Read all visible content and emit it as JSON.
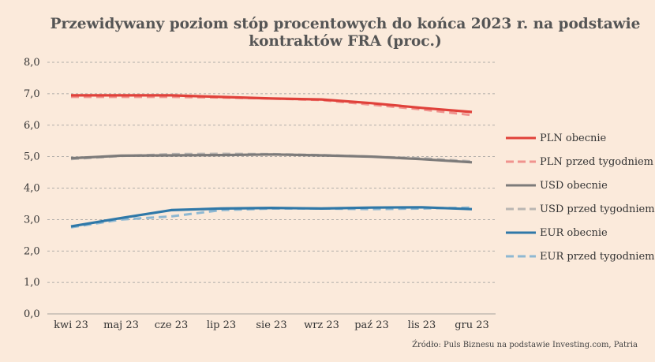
{
  "chart_data": {
    "type": "line",
    "title_lines": [
      "Przewidywany poziom stóp procentowych do końca 2023 r. na podstawie",
      "kontraktów FRA (proc.)"
    ],
    "categories": [
      "kwi 23",
      "maj 23",
      "cze 23",
      "lip 23",
      "sie 23",
      "wrz 23",
      "paź 23",
      "lis 23",
      "gru 23"
    ],
    "y_ticks": [
      "0,0",
      "1,0",
      "2,0",
      "3,0",
      "4,0",
      "5,0",
      "6,0",
      "7,0",
      "8,0"
    ],
    "ylim": [
      0,
      8
    ],
    "grid": true,
    "legend_position": "right",
    "series": [
      {
        "name": "PLN obecnie",
        "color": "#e0413a",
        "style": "solid",
        "x": [
          0,
          1,
          2,
          3,
          4,
          5,
          6,
          7,
          8
        ],
        "values": [
          6.95,
          6.95,
          6.95,
          6.9,
          6.85,
          6.82,
          6.7,
          6.55,
          6.42
        ]
      },
      {
        "name": "PLN przed tygodniem",
        "color": "#f0938e",
        "style": "dashed",
        "x": [
          0,
          1,
          2,
          3,
          4,
          5,
          6,
          7,
          8
        ],
        "values": [
          6.9,
          6.9,
          6.9,
          6.88,
          6.85,
          6.8,
          6.65,
          6.5,
          6.32
        ]
      },
      {
        "name": "USD obecnie",
        "color": "#7d7b7a",
        "style": "solid",
        "x": [
          0,
          1,
          2,
          3,
          4,
          5,
          6,
          7,
          8
        ],
        "values": [
          4.95,
          5.03,
          5.04,
          5.05,
          5.07,
          5.04,
          5.0,
          4.92,
          4.82
        ]
      },
      {
        "name": "USD przed tygodniem",
        "color": "#b9b5b2",
        "style": "dashed",
        "x": [
          0,
          1,
          2,
          3,
          4,
          5,
          6,
          7,
          8
        ],
        "values": [
          4.92,
          5.02,
          5.08,
          5.09,
          5.08,
          5.05,
          5.0,
          4.95,
          4.85
        ]
      },
      {
        "name": "EUR obecnie",
        "color": "#2f78a8",
        "style": "solid",
        "x": [
          0,
          1,
          2,
          3,
          4,
          5,
          6,
          7,
          8
        ],
        "values": [
          2.78,
          3.05,
          3.3,
          3.35,
          3.37,
          3.35,
          3.38,
          3.39,
          3.33
        ]
      },
      {
        "name": "EUR przed tygodniem",
        "color": "#8eb8d2",
        "style": "dashed",
        "x": [
          0,
          1,
          2,
          3,
          4,
          5,
          6,
          7,
          8
        ],
        "values": [
          2.75,
          3.0,
          3.1,
          3.3,
          3.35,
          3.35,
          3.33,
          3.35,
          3.38
        ]
      }
    ]
  },
  "source": "Źródło: Puls Biznesu na podstawie Investing.com, Patria"
}
